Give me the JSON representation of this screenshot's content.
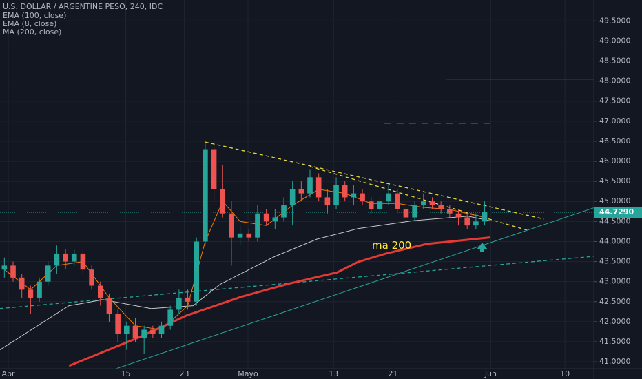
{
  "chart_data": {
    "type": "candlestick",
    "title": "U.S. DOLLAR / ARGENTINE PESO, 240, IDC",
    "up_color": "#26a69a",
    "down_color": "#ef5350",
    "xlim": [
      -0.5,
      67.5
    ],
    "xticks": [
      {
        "value": 0.45,
        "label": "Abr"
      },
      {
        "value": 13.9,
        "label": "15"
      },
      {
        "value": 20.6,
        "label": "23"
      },
      {
        "value": 27.9,
        "label": "Mayo"
      },
      {
        "value": 37.7,
        "label": "13"
      },
      {
        "value": 44.5,
        "label": "21"
      },
      {
        "value": 55.7,
        "label": "Jun"
      },
      {
        "value": 64.2,
        "label": "10"
      }
    ],
    "ylim": [
      40.83,
      50.02
    ],
    "yticks": [
      {
        "value": 41.0,
        "label": "41.0000"
      },
      {
        "value": 41.5,
        "label": "41.5000"
      },
      {
        "value": 42.0,
        "label": "42.0000"
      },
      {
        "value": 42.5,
        "label": "42.5000"
      },
      {
        "value": 43.0,
        "label": "43.0000"
      },
      {
        "value": 43.5,
        "label": "43.5000"
      },
      {
        "value": 44.0,
        "label": "44.0000"
      },
      {
        "value": 44.5,
        "label": "44.5000"
      },
      {
        "value": 45.0,
        "label": "45.0000"
      },
      {
        "value": 45.5,
        "label": "45.5000"
      },
      {
        "value": 46.0,
        "label": "46.0000"
      },
      {
        "value": 46.5,
        "label": "46.5000"
      },
      {
        "value": 47.0,
        "label": "47.0000"
      },
      {
        "value": 47.5,
        "label": "47.5000"
      },
      {
        "value": 48.0,
        "label": "48.0000"
      },
      {
        "value": 48.5,
        "label": "48.5000"
      },
      {
        "value": 49.0,
        "label": "49.0000"
      },
      {
        "value": 49.5,
        "label": "49.5000"
      }
    ],
    "grid": true,
    "candles": {
      "x": [
        0,
        1,
        2,
        3,
        4,
        5,
        6,
        7,
        8,
        9,
        10,
        11,
        12,
        13,
        14,
        15,
        16,
        17,
        18,
        19,
        20,
        21,
        22,
        23,
        24,
        25,
        26,
        27,
        28,
        29,
        30,
        31,
        32,
        33,
        34,
        35,
        36,
        37,
        38,
        39,
        40,
        41,
        42,
        43,
        44,
        45,
        46,
        47,
        48,
        49,
        50,
        51,
        52,
        53,
        54,
        55
      ],
      "open": [
        43.3,
        43.4,
        43.1,
        42.8,
        42.6,
        43.0,
        43.4,
        43.7,
        43.5,
        43.7,
        43.3,
        42.9,
        42.6,
        42.2,
        41.7,
        41.9,
        41.6,
        41.8,
        41.7,
        41.9,
        42.3,
        42.6,
        42.5,
        44.0,
        46.3,
        45.3,
        44.7,
        44.1,
        44.2,
        44.1,
        44.7,
        44.5,
        44.6,
        44.9,
        45.3,
        45.2,
        45.6,
        45.1,
        44.9,
        45.4,
        45.1,
        45.2,
        45.0,
        44.8,
        45.0,
        45.2,
        44.8,
        44.6,
        44.9,
        45.0,
        44.9,
        44.8,
        44.7,
        44.6,
        44.4,
        44.5
      ],
      "high": [
        43.6,
        43.5,
        43.2,
        42.9,
        43.1,
        43.5,
        43.9,
        43.8,
        43.8,
        43.8,
        43.4,
        43.0,
        42.7,
        42.3,
        42.0,
        42.1,
        41.9,
        41.9,
        42.0,
        42.4,
        42.8,
        42.8,
        44.1,
        46.5,
        46.4,
        45.9,
        45.0,
        44.4,
        44.3,
        44.9,
        44.8,
        44.8,
        45.1,
        45.5,
        45.5,
        45.8,
        45.7,
        45.3,
        45.6,
        45.5,
        45.4,
        45.3,
        45.1,
        45.1,
        45.4,
        45.3,
        44.9,
        45.0,
        45.2,
        45.1,
        45.0,
        44.9,
        44.8,
        44.7,
        44.7,
        45.0
      ],
      "low": [
        43.1,
        43.0,
        42.6,
        42.2,
        42.5,
        42.9,
        43.2,
        43.3,
        43.4,
        43.2,
        42.8,
        42.4,
        42.0,
        41.5,
        41.3,
        41.5,
        41.2,
        41.6,
        41.6,
        41.8,
        42.2,
        42.3,
        42.4,
        43.9,
        45.0,
        44.6,
        43.4,
        43.9,
        44.0,
        44.0,
        44.4,
        44.3,
        44.5,
        44.4,
        45.0,
        45.1,
        45.0,
        44.7,
        44.8,
        45.0,
        44.9,
        44.9,
        44.7,
        44.7,
        44.9,
        44.7,
        44.5,
        44.5,
        44.8,
        44.8,
        44.7,
        44.6,
        44.4,
        44.3,
        44.3,
        44.4
      ],
      "close": [
        43.4,
        43.1,
        42.8,
        42.6,
        43.0,
        43.4,
        43.7,
        43.5,
        43.7,
        43.3,
        42.9,
        42.6,
        42.2,
        41.7,
        41.9,
        41.6,
        41.8,
        41.7,
        41.9,
        42.3,
        42.6,
        42.5,
        44.0,
        46.3,
        45.3,
        44.7,
        44.1,
        44.2,
        44.1,
        44.7,
        44.5,
        44.6,
        44.9,
        45.3,
        45.2,
        45.6,
        45.1,
        44.9,
        45.4,
        45.1,
        45.2,
        45.0,
        44.8,
        45.0,
        45.2,
        44.8,
        44.6,
        44.9,
        45.0,
        44.9,
        44.8,
        44.7,
        44.6,
        44.4,
        44.5,
        44.73
      ]
    },
    "series": [
      {
        "name": "EMA (100, close)",
        "color": "#c8c8c8",
        "width": 1,
        "x": [
          -0.5,
          7.4,
          11.3,
          16.8,
          21.6,
          24.7,
          31.0,
          35.8,
          40.5,
          46.8,
          53.1,
          55.6
        ],
        "values": [
          41.3,
          42.4,
          42.55,
          42.33,
          42.4,
          42.93,
          43.63,
          44.06,
          44.32,
          44.52,
          44.63,
          44.52
        ]
      },
      {
        "name": "EMA (8, close)",
        "color": "#f57c00",
        "width": 1,
        "x": [
          0,
          3,
          6,
          9,
          12,
          15,
          18,
          21,
          23,
          25,
          27,
          30,
          33,
          36,
          39,
          42,
          45,
          48,
          51,
          55
        ],
        "values": [
          43.3,
          42.8,
          43.4,
          43.5,
          42.6,
          41.9,
          41.8,
          42.4,
          44.0,
          45.0,
          44.5,
          44.4,
          44.9,
          45.3,
          45.2,
          44.95,
          44.95,
          44.85,
          44.8,
          44.6
        ]
      },
      {
        "name": "MA (200, close)",
        "color": "#e53935",
        "width": 3,
        "x": [
          7.4,
          15.3,
          20.8,
          27.1,
          32.6,
          38.1,
          40.5,
          43.7,
          48.4,
          55.6
        ],
        "values": [
          40.9,
          41.6,
          42.15,
          42.62,
          42.95,
          43.23,
          43.49,
          43.7,
          43.94,
          44.1
        ]
      }
    ],
    "drawings": [
      {
        "color": "#e6d83a",
        "dash": true,
        "x": [
          23.0,
          61.8
        ],
        "y": [
          46.48,
          44.56
        ]
      },
      {
        "color": "#e6d83a",
        "dash": true,
        "x": [
          35.0,
          60.2
        ],
        "y": [
          45.87,
          44.26
        ]
      },
      {
        "color": "#26a69a",
        "dash": false,
        "x": [
          8.96,
          67.5
        ],
        "y": [
          40.55,
          44.84
        ]
      },
      {
        "color": "#26a69a",
        "dash": true,
        "x": [
          -0.5,
          67.5
        ],
        "y": [
          42.33,
          43.63
        ]
      },
      {
        "color": "#22c55e",
        "dash": true,
        "x": [
          43.5,
          56.1
        ],
        "y": [
          46.95,
          46.95
        ]
      },
      {
        "color": "#d32f2f",
        "dash": false,
        "x": [
          50.6,
          67.5
        ],
        "y": [
          48.05,
          48.05
        ]
      }
    ],
    "annotation": {
      "text": "ma 200",
      "x": 42.1,
      "y": 43.9,
      "color": "#ffeb3b"
    },
    "last_price": 44.729,
    "last_price_label": "44.7290"
  }
}
